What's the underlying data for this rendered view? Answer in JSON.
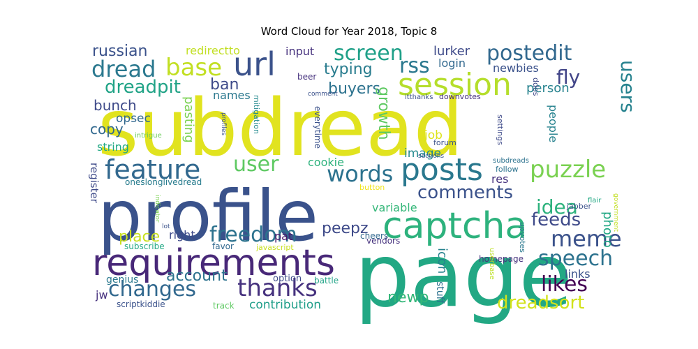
{
  "chart_data": {
    "type": "wordcloud",
    "title": "Word Cloud for Year 2018, Topic 8",
    "words": [
      {
        "text": "subdread",
        "color": "#e1e31f"
      },
      {
        "text": "page",
        "color": "#22a884"
      },
      {
        "text": "profile",
        "color": "#3a528b"
      },
      {
        "text": "requirements",
        "color": "#482878"
      },
      {
        "text": "captcha",
        "color": "#2db27d"
      },
      {
        "text": "posts",
        "color": "#2a788e"
      },
      {
        "text": "session",
        "color": "#b5de2b"
      },
      {
        "text": "url",
        "color": "#3b528b"
      },
      {
        "text": "feature",
        "color": "#31688e"
      },
      {
        "text": "puzzle",
        "color": "#7ad151"
      },
      {
        "text": "words",
        "color": "#2c728e"
      },
      {
        "text": "thanks",
        "color": "#46327e"
      },
      {
        "text": "freedom",
        "color": "#2c728e"
      },
      {
        "text": "meme",
        "color": "#3b528b"
      },
      {
        "text": "base",
        "color": "#c2df23"
      },
      {
        "text": "screen",
        "color": "#1fa088"
      },
      {
        "text": "postedit",
        "color": "#31688e"
      },
      {
        "text": "dread",
        "color": "#2a788e"
      },
      {
        "text": "changes",
        "color": "#31688e"
      },
      {
        "text": "comments",
        "color": "#3b528b"
      },
      {
        "text": "user",
        "color": "#5ec962"
      },
      {
        "text": "speech",
        "color": "#2c728e"
      },
      {
        "text": "likes",
        "color": "#440154"
      },
      {
        "text": "dreadsort",
        "color": "#d2e21b"
      },
      {
        "text": "rss",
        "color": "#2a788e"
      },
      {
        "text": "idea",
        "color": "#2db27d"
      },
      {
        "text": "feeds",
        "color": "#3e4a89"
      },
      {
        "text": "fly",
        "color": "#414487"
      },
      {
        "text": "dreadpit",
        "color": "#20a386"
      },
      {
        "text": "users",
        "color": "#26828e"
      },
      {
        "text": "account",
        "color": "#2c728e"
      },
      {
        "text": "russian",
        "color": "#3b528b"
      },
      {
        "text": "typing",
        "color": "#287c8e"
      },
      {
        "text": "buyers",
        "color": "#2c728e"
      },
      {
        "text": "growth",
        "color": "#5ec962"
      },
      {
        "text": "peepz",
        "color": "#3e4a89"
      },
      {
        "text": "place",
        "color": "#c8e020"
      },
      {
        "text": "newp",
        "color": "#35b779"
      },
      {
        "text": "contribution",
        "color": "#1f9e89"
      },
      {
        "text": "ban",
        "color": "#3e4a89"
      },
      {
        "text": "bunch",
        "color": "#3e4a89"
      },
      {
        "text": "copy",
        "color": "#31688e"
      },
      {
        "text": "pasting",
        "color": "#7ad151"
      },
      {
        "text": "redirectto",
        "color": "#c2df23"
      },
      {
        "text": "input",
        "color": "#46327e"
      },
      {
        "text": "lurker",
        "color": "#3e4a89"
      },
      {
        "text": "newbies",
        "color": "#3b528b"
      },
      {
        "text": "person",
        "color": "#26828e"
      },
      {
        "text": "login",
        "color": "#31688e"
      },
      {
        "text": "names",
        "color": "#2a788e"
      },
      {
        "text": "opsec",
        "color": "#31688e"
      },
      {
        "text": "string",
        "color": "#22a884"
      },
      {
        "text": "cookie",
        "color": "#2db27d"
      },
      {
        "text": "image",
        "color": "#23898e"
      },
      {
        "text": "job",
        "color": "#dde318"
      },
      {
        "text": "people",
        "color": "#26828e"
      },
      {
        "text": "res",
        "color": "#46327e"
      },
      {
        "text": "variable",
        "color": "#35b779"
      },
      {
        "text": "photo",
        "color": "#22a884"
      },
      {
        "text": "icon",
        "color": "#26828e"
      },
      {
        "text": "links",
        "color": "#3b528b"
      },
      {
        "text": "right",
        "color": "#3e4a89"
      },
      {
        "text": "pat",
        "color": "#481a6c"
      },
      {
        "text": "register",
        "color": "#3e4a89"
      },
      {
        "text": "jw",
        "color": "#46327e"
      },
      {
        "text": "genius",
        "color": "#2a788e"
      },
      {
        "text": "option",
        "color": "#3e4a89"
      },
      {
        "text": "battle",
        "color": "#20a386"
      },
      {
        "text": "cheers",
        "color": "#31688e"
      },
      {
        "text": "vendors",
        "color": "#46327e"
      },
      {
        "text": "homepage",
        "color": "#46327e"
      },
      {
        "text": "stuff",
        "color": "#2c728e"
      },
      {
        "text": "upvotes",
        "color": "#2a788e"
      },
      {
        "text": "userbase",
        "color": "#bddf26"
      },
      {
        "text": "scriptkiddie",
        "color": "#3b528b"
      },
      {
        "text": "track",
        "color": "#5ec962"
      },
      {
        "text": "subscribe",
        "color": "#22a884"
      },
      {
        "text": "favor",
        "color": "#31688e"
      },
      {
        "text": "javascript",
        "color": "#c8e020"
      },
      {
        "text": "oneslonglivedread",
        "color": "#287c8e"
      },
      {
        "text": "button",
        "color": "#f1e51d"
      },
      {
        "text": "mitigation",
        "color": "#23898e"
      },
      {
        "text": "everytime",
        "color": "#3b528b"
      },
      {
        "text": "forum",
        "color": "#3b528b"
      },
      {
        "text": "sections",
        "color": "#3b528b"
      },
      {
        "text": "subdreads",
        "color": "#2c728e"
      },
      {
        "text": "follow",
        "color": "#2c728e"
      },
      {
        "text": "settings",
        "color": "#3e4a89"
      },
      {
        "text": "jabber",
        "color": "#3b528b"
      },
      {
        "text": "flair",
        "color": "#22a884"
      },
      {
        "text": "government",
        "color": "#c2df23"
      },
      {
        "text": "intrigue",
        "color": "#6ccd5a"
      },
      {
        "text": "profiles",
        "color": "#3b528b"
      },
      {
        "text": "lot",
        "color": "#3b528b"
      },
      {
        "text": "indicator",
        "color": "#7ad151"
      },
      {
        "text": "beer",
        "color": "#46327e"
      },
      {
        "text": "comment",
        "color": "#3b528b"
      },
      {
        "text": "itthanks",
        "color": "#3b528b"
      },
      {
        "text": "downvotes",
        "color": "#46327e"
      },
      {
        "text": "ddos",
        "color": "#3e4a89"
      }
    ]
  }
}
